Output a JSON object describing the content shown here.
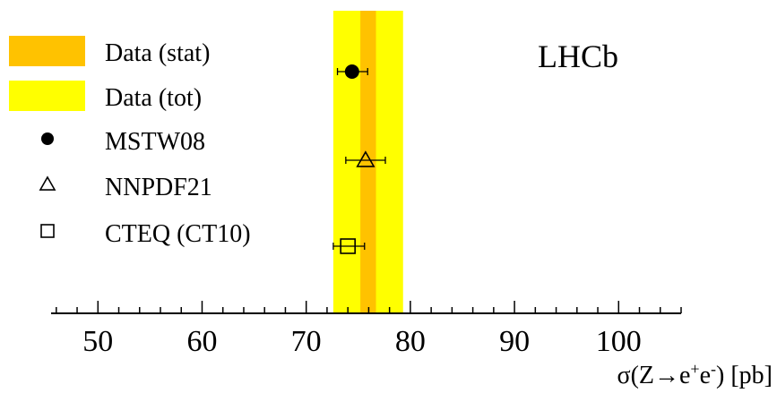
{
  "chart_data": {
    "type": "scatter",
    "title": "LHCb",
    "xlabel": {
      "prefix": "σ(Z→e",
      "sup1": "+",
      "mid": "e",
      "sup2": "-",
      "suffix": ") [pb]"
    },
    "xlim": [
      45.5,
      106
    ],
    "xticks": [
      50,
      60,
      70,
      80,
      90,
      100
    ],
    "xminor_step": 2,
    "data_band": {
      "central": 76.0,
      "stat": [
        75.2,
        76.7
      ],
      "tot": [
        72.6,
        79.3
      ],
      "stat_color": "#FFC200",
      "tot_color": "#FFFF00"
    },
    "predictions": [
      {
        "name": "MSTW08",
        "marker": "filled-circle",
        "value": 74.4,
        "err_lo": 1.4,
        "err_hi": 1.5
      },
      {
        "name": "NNPDF21",
        "marker": "open-triangle",
        "value": 75.7,
        "err_lo": 1.9,
        "err_hi": 1.9
      },
      {
        "name": "CTEQ (CT10)",
        "marker": "open-square",
        "value": 74.0,
        "err_lo": 1.4,
        "err_hi": 1.6
      }
    ],
    "legend": {
      "placement": "top-left",
      "entries": [
        {
          "label": "Data (stat)",
          "symbol": "band-stat"
        },
        {
          "label": "Data (tot)",
          "symbol": "band-tot"
        },
        {
          "label": "MSTW08",
          "symbol": "filled-circle"
        },
        {
          "label": "NNPDF21",
          "symbol": "open-triangle"
        },
        {
          "label": "CTEQ (CT10)",
          "symbol": "open-square"
        }
      ]
    }
  }
}
